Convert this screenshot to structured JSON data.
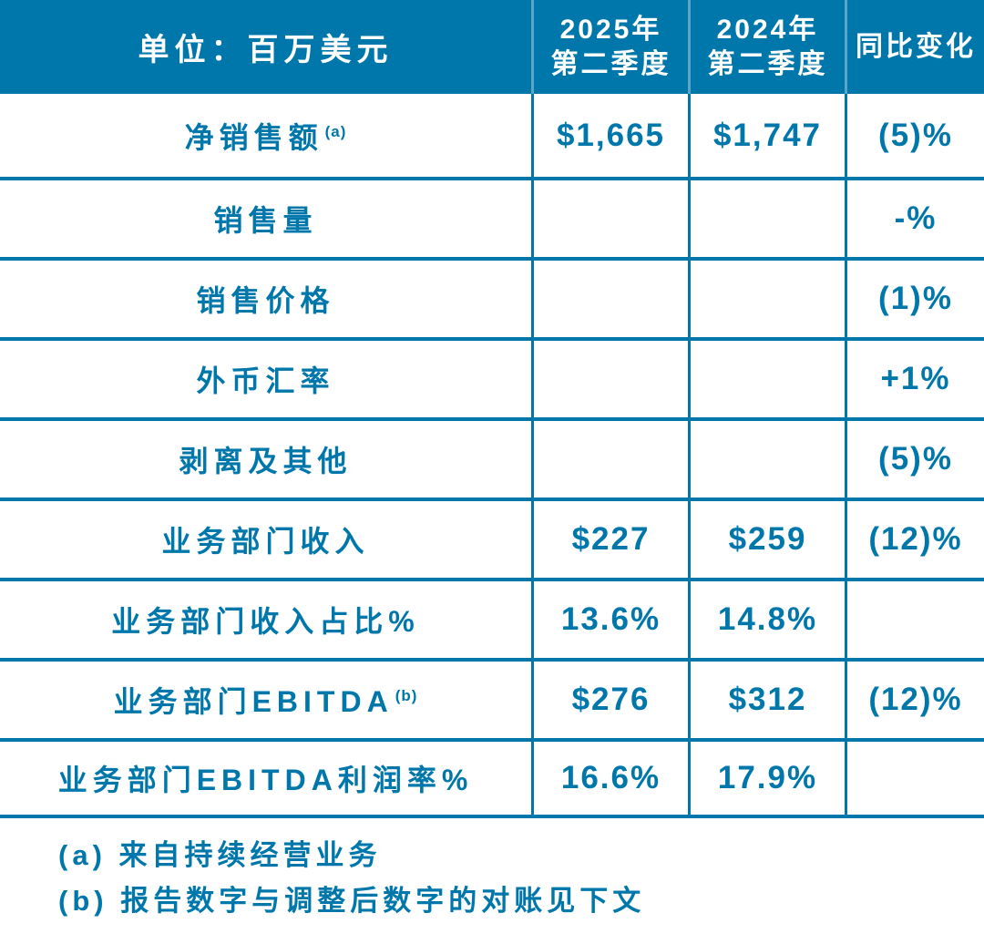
{
  "theme": {
    "accent": "#0077AB",
    "header_text": "#FFFFFF",
    "background": "#FFFFFF"
  },
  "chart_data": {
    "type": "table",
    "title": "单位：百万美元",
    "header": {
      "unit_label": "单位：百万美元",
      "col_2025_line1": "2025年",
      "col_2025_line2": "第二季度",
      "col_2024_line1": "2024年",
      "col_2024_line2": "第二季度",
      "col_change": "同比变化"
    },
    "columns": [
      "单位：百万美元",
      "2025年第二季度",
      "2024年第二季度",
      "同比变化"
    ],
    "rows": [
      {
        "label": "净销售额",
        "footnote_ref": "(a)",
        "q2_2025": "$1,665",
        "q2_2024": "$1,747",
        "yoy_change": "(5)%"
      },
      {
        "label": "销售量",
        "footnote_ref": "",
        "q2_2025": "",
        "q2_2024": "",
        "yoy_change": "-%"
      },
      {
        "label": "销售价格",
        "footnote_ref": "",
        "q2_2025": "",
        "q2_2024": "",
        "yoy_change": "(1)%"
      },
      {
        "label": "外币汇率",
        "footnote_ref": "",
        "q2_2025": "",
        "q2_2024": "",
        "yoy_change": "+1%"
      },
      {
        "label": "剥离及其他",
        "footnote_ref": "",
        "q2_2025": "",
        "q2_2024": "",
        "yoy_change": "(5)%"
      },
      {
        "label": "业务部门收入",
        "footnote_ref": "",
        "q2_2025": "$227",
        "q2_2024": "$259",
        "yoy_change": "(12)%"
      },
      {
        "label": "业务部门收入占比%",
        "footnote_ref": "",
        "q2_2025": "13.6%",
        "q2_2024": "14.8%",
        "yoy_change": ""
      },
      {
        "label": "业务部门EBITDA",
        "footnote_ref": "(b)",
        "q2_2025": "$276",
        "q2_2024": "$312",
        "yoy_change": "(12)%"
      },
      {
        "label": "业务部门EBITDA利润率%",
        "footnote_ref": "",
        "q2_2025": "16.6%",
        "q2_2024": "17.9%",
        "yoy_change": ""
      }
    ],
    "footnotes": [
      "(a) 来自持续经营业务",
      "(b) 报告数字与调整后数字的对账见下文"
    ]
  }
}
